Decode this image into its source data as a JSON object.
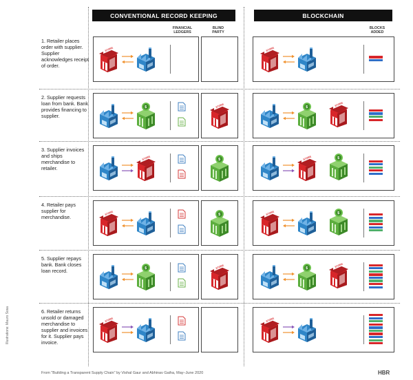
{
  "header": {
    "conventional": "CONVENTIONAL RECORD KEEPING",
    "blockchain": "BLOCKCHAIN",
    "financial_ledgers": "FINANCIAL\nLEDGERS",
    "blind_party": "BLIND\nPARTY",
    "blocks_added": "BLOCKS\nADDED"
  },
  "steps": [
    {
      "text": "1. Retailer places order with supplier. Supplier acknowledges receipt of order.",
      "blocks": 2
    },
    {
      "text": "2. Supplier requests loan from bank. Bank provides financing to supplier.",
      "blocks": 4
    },
    {
      "text": "3. Supplier invoices and ships merchandise to retailer.",
      "blocks": 5
    },
    {
      "text": "4. Retailer pays supplier for merchandise.",
      "blocks": 6
    },
    {
      "text": "5. Supplier repays bank. Bank closes loan record.",
      "blocks": 8
    },
    {
      "text": "6. Retailer returns unsold or damaged merchandise to supplier and invoices for it. Supplier pays invoice.",
      "blocks": 10
    }
  ],
  "store_sign": "STORE",
  "footer": "From \"Building a Transparent Supply Chain\" by Vishal Gaur and Abhinav Gaiha, May–June 2020",
  "side_credit": "Illustrations: Mauro Sosa",
  "brand": "HBR",
  "colors": {
    "store_red": "#d8262a",
    "supplier_blue": "#2f86c8",
    "bank_green": "#5cae3e",
    "arrow_orange": "#f0912e",
    "arrow_purple": "#8a56b8",
    "doc_blue": "#3f7fc0",
    "doc_green": "#6ab24a",
    "doc_red": "#d63a3a",
    "block_red": "#d8262a",
    "block_blue": "#2f6fc8",
    "block_green": "#4fb06a"
  }
}
